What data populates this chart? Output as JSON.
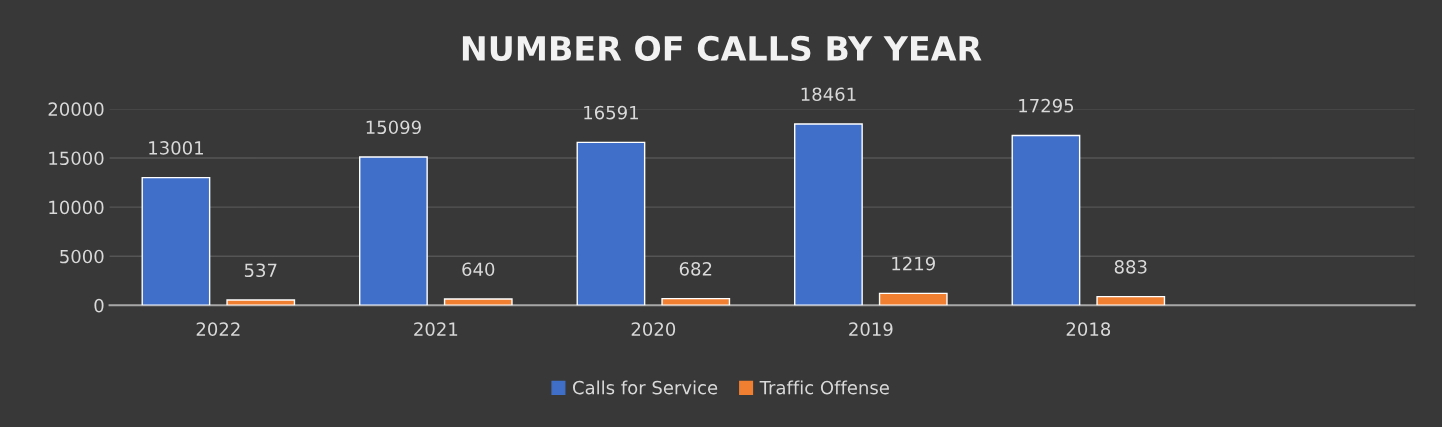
{
  "chart_data": {
    "type": "bar",
    "title": "NUMBER OF CALLS BY YEAR",
    "categories": [
      "2022",
      "2021",
      "2020",
      "2019",
      "2018",
      null
    ],
    "series": [
      {
        "name": "Calls for Service",
        "color": "#3f6fc8",
        "values": [
          13001,
          15099,
          16591,
          18461,
          17295,
          null
        ]
      },
      {
        "name": "Traffic Offense",
        "color": "#f07f32",
        "values": [
          537,
          640,
          682,
          1219,
          883,
          null
        ]
      }
    ],
    "ylim": [
      0,
      20000
    ],
    "yticks": [
      0,
      5000,
      10000,
      15000,
      20000
    ],
    "grid": "y",
    "legend": "bottom",
    "data_labels": true
  }
}
